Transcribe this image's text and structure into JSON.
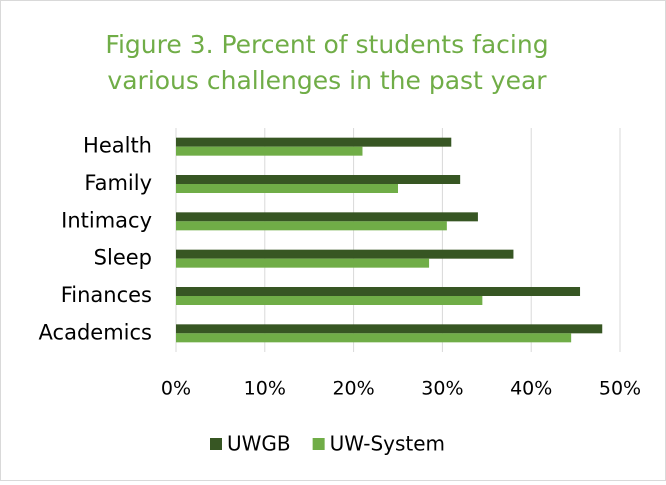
{
  "chart_data": {
    "type": "barh",
    "title": [
      "Figure 3. Percent of students facing",
      "various challenges in the past year"
    ],
    "categories": [
      "Health",
      "Family",
      "Intimacy",
      "Sleep",
      "Finances",
      "Academics"
    ],
    "series": [
      {
        "name": "UWGB",
        "color": "#375623",
        "values": [
          31,
          32,
          34,
          38,
          45.5,
          48
        ]
      },
      {
        "name": "UW-System",
        "color": "#70ad47",
        "values": [
          21,
          25,
          30.5,
          28.5,
          34.5,
          44.5
        ]
      }
    ],
    "xlim": [
      0,
      50
    ],
    "xticks": [
      {
        "value": 0,
        "label": "0%"
      },
      {
        "value": 10,
        "label": "10%"
      },
      {
        "value": 20,
        "label": "20%"
      },
      {
        "value": 30,
        "label": "30%"
      },
      {
        "value": 40,
        "label": "40%"
      },
      {
        "value": 50,
        "label": "50%"
      }
    ],
    "grid": true,
    "legend": "bottom"
  }
}
